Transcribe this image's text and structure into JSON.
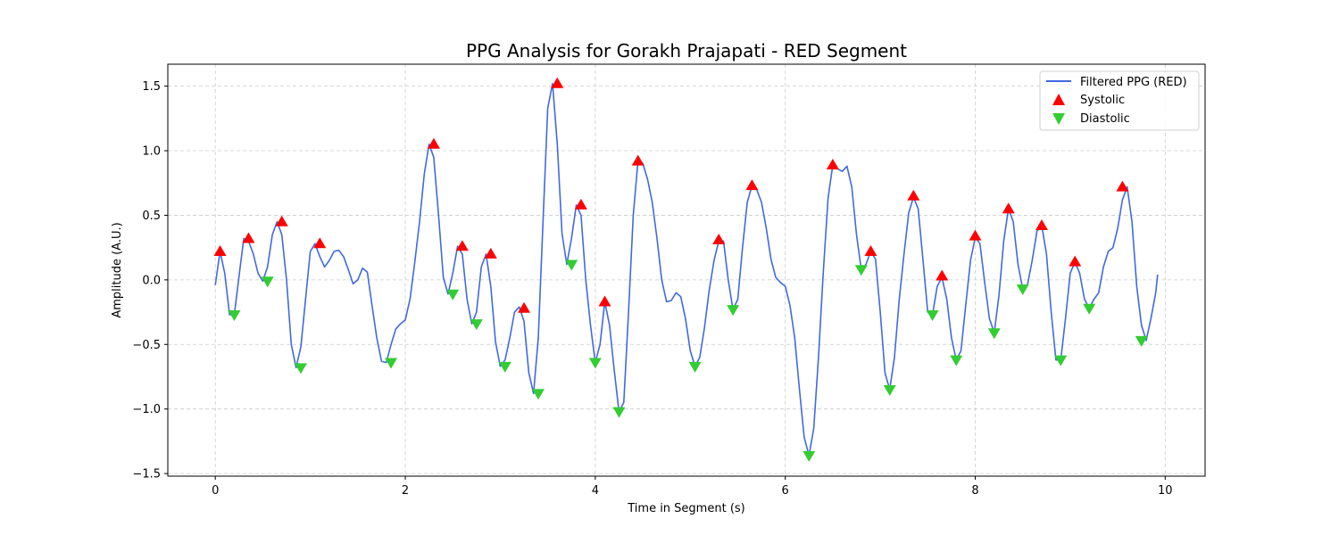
{
  "chart_data": {
    "type": "line",
    "title": "PPG Analysis for Gorakh Prajapati - RED Segment",
    "xlabel": "Time in Segment (s)",
    "ylabel": "Amplitude (A.U.)",
    "xlim": [
      -0.5,
      10.42
    ],
    "ylim": [
      -1.52,
      1.67
    ],
    "xticks": [
      0,
      2,
      4,
      6,
      8,
      10
    ],
    "yticks": [
      -1.5,
      -1.0,
      -0.5,
      0.0,
      0.5,
      1.0,
      1.5
    ],
    "xtick_labels": [
      "0",
      "2",
      "4",
      "6",
      "8",
      "10"
    ],
    "ytick_labels": [
      "−1.5",
      "−1.0",
      "−0.5",
      "0.0",
      "0.5",
      "1.0",
      "1.5"
    ],
    "grid": true,
    "legend_position": "top-right",
    "colors": {
      "line": "#4169e1",
      "systolic": "#ff0000",
      "diastolic": "#32cd32"
    },
    "series": [
      {
        "name": "Filtered PPG (RED)",
        "kind": "line",
        "x": [
          0.0,
          0.05,
          0.1,
          0.15,
          0.2,
          0.25,
          0.3,
          0.35,
          0.4,
          0.45,
          0.5,
          0.55,
          0.6,
          0.65,
          0.7,
          0.75,
          0.8,
          0.85,
          0.9,
          0.95,
          1.0,
          1.05,
          1.1,
          1.15,
          1.2,
          1.25,
          1.3,
          1.35,
          1.4,
          1.45,
          1.5,
          1.55,
          1.6,
          1.65,
          1.7,
          1.75,
          1.8,
          1.85,
          1.9,
          1.95,
          2.0,
          2.05,
          2.1,
          2.15,
          2.2,
          2.25,
          2.3,
          2.35,
          2.4,
          2.45,
          2.5,
          2.55,
          2.6,
          2.65,
          2.7,
          2.75,
          2.8,
          2.85,
          2.9,
          2.95,
          3.0,
          3.05,
          3.1,
          3.15,
          3.2,
          3.25,
          3.3,
          3.35,
          3.4,
          3.45,
          3.5,
          3.55,
          3.6,
          3.65,
          3.7,
          3.75,
          3.8,
          3.85,
          3.9,
          3.95,
          4.0,
          4.05,
          4.1,
          4.15,
          4.2,
          4.25,
          4.3,
          4.35,
          4.4,
          4.45,
          4.5,
          4.55,
          4.6,
          4.65,
          4.7,
          4.75,
          4.8,
          4.85,
          4.9,
          4.95,
          5.0,
          5.05,
          5.1,
          5.15,
          5.2,
          5.25,
          5.3,
          5.35,
          5.4,
          5.45,
          5.5,
          5.55,
          5.6,
          5.65,
          5.7,
          5.75,
          5.8,
          5.85,
          5.9,
          5.95,
          6.0,
          6.05,
          6.1,
          6.15,
          6.2,
          6.25,
          6.3,
          6.35,
          6.4,
          6.45,
          6.5,
          6.55,
          6.6,
          6.65,
          6.7,
          6.75,
          6.8,
          6.85,
          6.9,
          6.95,
          7.0,
          7.05,
          7.1,
          7.15,
          7.2,
          7.25,
          7.3,
          7.35,
          7.4,
          7.45,
          7.5,
          7.55,
          7.6,
          7.65,
          7.7,
          7.75,
          7.8,
          7.85,
          7.9,
          7.95,
          8.0,
          8.05,
          8.1,
          8.15,
          8.2,
          8.25,
          8.3,
          8.35,
          8.4,
          8.45,
          8.5,
          8.55,
          8.6,
          8.65,
          8.7,
          8.75,
          8.8,
          8.85,
          8.9,
          8.95,
          9.0,
          9.05,
          9.1,
          9.15,
          9.2,
          9.25,
          9.3,
          9.35,
          9.4,
          9.45,
          9.5,
          9.55,
          9.6,
          9.65,
          9.7,
          9.75,
          9.8,
          9.85,
          9.9,
          9.92
        ],
        "y": [
          -0.04,
          0.22,
          0.05,
          -0.27,
          -0.27,
          0.03,
          0.32,
          0.3,
          0.2,
          0.05,
          -0.01,
          0.1,
          0.35,
          0.45,
          0.35,
          0.0,
          -0.5,
          -0.68,
          -0.52,
          -0.15,
          0.22,
          0.28,
          0.18,
          0.1,
          0.15,
          0.22,
          0.23,
          0.18,
          0.08,
          -0.03,
          0.0,
          0.09,
          0.06,
          -0.2,
          -0.45,
          -0.63,
          -0.64,
          -0.5,
          -0.38,
          -0.34,
          -0.31,
          -0.15,
          0.14,
          0.45,
          0.82,
          1.05,
          0.95,
          0.5,
          0.02,
          -0.11,
          0.05,
          0.26,
          0.2,
          -0.15,
          -0.34,
          -0.25,
          0.1,
          0.2,
          -0.05,
          -0.48,
          -0.67,
          -0.62,
          -0.45,
          -0.25,
          -0.21,
          -0.32,
          -0.72,
          -0.88,
          -0.45,
          0.45,
          1.33,
          1.52,
          1.05,
          0.36,
          0.12,
          0.32,
          0.58,
          0.5,
          0.0,
          -0.35,
          -0.64,
          -0.5,
          -0.17,
          -0.35,
          -0.7,
          -1.02,
          -0.95,
          -0.25,
          0.5,
          0.92,
          0.9,
          0.78,
          0.6,
          0.32,
          0.0,
          -0.17,
          -0.16,
          -0.1,
          -0.13,
          -0.3,
          -0.55,
          -0.67,
          -0.6,
          -0.37,
          -0.08,
          0.15,
          0.3,
          0.3,
          0.0,
          -0.23,
          -0.15,
          0.25,
          0.6,
          0.73,
          0.7,
          0.6,
          0.4,
          0.16,
          0.02,
          -0.02,
          -0.05,
          -0.2,
          -0.45,
          -0.85,
          -1.22,
          -1.36,
          -1.15,
          -0.6,
          0.05,
          0.63,
          0.89,
          0.86,
          0.84,
          0.88,
          0.72,
          0.35,
          0.08,
          0.12,
          0.22,
          0.16,
          -0.25,
          -0.72,
          -0.85,
          -0.6,
          -0.15,
          0.2,
          0.52,
          0.64,
          0.55,
          0.15,
          -0.25,
          -0.27,
          -0.05,
          0.02,
          -0.15,
          -0.45,
          -0.62,
          -0.55,
          -0.2,
          0.15,
          0.33,
          0.28,
          -0.02,
          -0.3,
          -0.41,
          -0.12,
          0.3,
          0.55,
          0.45,
          0.12,
          -0.07,
          -0.04,
          0.15,
          0.38,
          0.42,
          0.2,
          -0.25,
          -0.62,
          -0.62,
          -0.3,
          0.05,
          0.14,
          0.05,
          -0.15,
          -0.22,
          -0.15,
          -0.1,
          0.1,
          0.22,
          0.25,
          0.4,
          0.62,
          0.72,
          0.45,
          -0.05,
          -0.35,
          -0.47,
          -0.3,
          -0.1,
          0.04
        ]
      },
      {
        "name": "Systolic",
        "kind": "marker-up",
        "x": [
          0.05,
          0.35,
          0.7,
          1.1,
          2.3,
          2.6,
          2.9,
          3.25,
          3.6,
          3.85,
          4.1,
          4.45,
          5.3,
          5.65,
          6.5,
          6.9,
          7.35,
          7.65,
          8.0,
          8.35,
          8.7,
          9.05,
          9.55
        ],
        "y": [
          0.22,
          0.32,
          0.45,
          0.28,
          1.05,
          0.26,
          0.2,
          -0.22,
          1.52,
          0.58,
          -0.17,
          0.92,
          0.31,
          0.73,
          0.89,
          0.22,
          0.65,
          0.03,
          0.34,
          0.55,
          0.42,
          0.14,
          0.72
        ]
      },
      {
        "name": "Diastolic",
        "kind": "marker-down",
        "x": [
          0.2,
          0.55,
          0.9,
          1.85,
          2.5,
          2.75,
          3.05,
          3.4,
          3.75,
          4.0,
          4.25,
          5.05,
          5.45,
          6.25,
          6.8,
          7.1,
          7.55,
          7.8,
          8.2,
          8.5,
          8.9,
          9.2,
          9.75
        ],
        "y": [
          -0.27,
          -0.01,
          -0.68,
          -0.64,
          -0.11,
          -0.34,
          -0.67,
          -0.88,
          0.12,
          -0.64,
          -1.02,
          -0.67,
          -0.23,
          -1.36,
          0.08,
          -0.85,
          -0.27,
          -0.62,
          -0.41,
          -0.07,
          -0.62,
          -0.22,
          -0.47
        ]
      }
    ]
  }
}
